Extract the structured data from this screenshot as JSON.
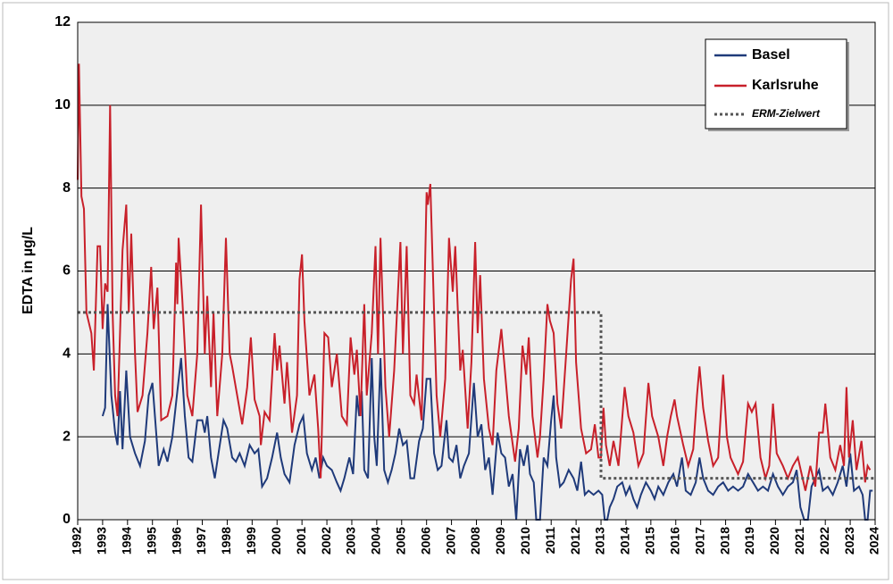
{
  "chart_data": {
    "type": "line",
    "y_label": "EDTA in µg/L",
    "xlim": [
      1992,
      2024
    ],
    "xticks": [
      1992,
      1993,
      1994,
      1995,
      1996,
      1997,
      1998,
      1999,
      2000,
      2001,
      2002,
      2003,
      2004,
      2005,
      2006,
      2007,
      2008,
      2009,
      2010,
      2011,
      2012,
      2013,
      2014,
      2015,
      2016,
      2017,
      2018,
      2019,
      2020,
      2021,
      2022,
      2023,
      2024
    ],
    "ylim": [
      0,
      12
    ],
    "yticks": [
      0,
      2,
      4,
      6,
      8,
      10,
      12
    ],
    "grid": true,
    "legend": "upper right",
    "series": [
      {
        "name": "Basel",
        "color": "#1f3a7a",
        "style": "solid",
        "x": [
          1993.0,
          1993.1,
          1993.2,
          1993.35,
          1993.5,
          1993.6,
          1993.7,
          1993.8,
          1993.95,
          1994.1,
          1994.3,
          1994.5,
          1994.7,
          1994.85,
          1995.0,
          1995.1,
          1995.25,
          1995.45,
          1995.6,
          1995.8,
          1996.0,
          1996.15,
          1996.3,
          1996.45,
          1996.6,
          1996.8,
          1997.0,
          1997.1,
          1997.2,
          1997.35,
          1997.5,
          1997.65,
          1997.85,
          1998.0,
          1998.2,
          1998.35,
          1998.5,
          1998.7,
          1998.9,
          1999.1,
          1999.25,
          1999.4,
          1999.6,
          1999.8,
          2000.0,
          2000.15,
          2000.3,
          2000.5,
          2000.7,
          2000.9,
          2001.05,
          2001.2,
          2001.4,
          2001.55,
          2001.7,
          2001.85,
          2002.0,
          2002.2,
          2002.4,
          2002.55,
          2002.7,
          2002.9,
          2003.05,
          2003.2,
          2003.3,
          2003.4,
          2003.5,
          2003.65,
          2003.8,
          2003.9,
          2004.0,
          2004.15,
          2004.3,
          2004.45,
          2004.6,
          2004.75,
          2004.9,
          2005.05,
          2005.2,
          2005.35,
          2005.5,
          2005.7,
          2005.85,
          2006.0,
          2006.15,
          2006.3,
          2006.45,
          2006.6,
          2006.8,
          2006.9,
          2007.05,
          2007.2,
          2007.35,
          2007.5,
          2007.7,
          2007.9,
          2008.05,
          2008.2,
          2008.35,
          2008.5,
          2008.65,
          2008.85,
          2009.0,
          2009.15,
          2009.3,
          2009.45,
          2009.6,
          2009.75,
          2009.9,
          2010.05,
          2010.15,
          2010.3,
          2010.4,
          2010.55,
          2010.7,
          2010.85,
          2011.0,
          2011.1,
          2011.2,
          2011.35,
          2011.5,
          2011.7,
          2011.9,
          2012.05,
          2012.2,
          2012.35,
          2012.5,
          2012.7,
          2012.9,
          2013.05,
          2013.15,
          2013.25,
          2013.35,
          2013.5,
          2013.65,
          2013.85,
          2014.0,
          2014.15,
          2014.3,
          2014.45,
          2014.6,
          2014.8,
          2015.0,
          2015.15,
          2015.3,
          2015.5,
          2015.7,
          2015.9,
          2016.05,
          2016.25,
          2016.4,
          2016.6,
          2016.8,
          2016.95,
          2017.1,
          2017.3,
          2017.5,
          2017.7,
          2017.9,
          2018.1,
          2018.3,
          2018.5,
          2018.7,
          2018.9,
          2019.1,
          2019.3,
          2019.5,
          2019.7,
          2019.9,
          2020.1,
          2020.3,
          2020.5,
          2020.7,
          2020.85,
          2021.0,
          2021.15,
          2021.3,
          2021.45,
          2021.6,
          2021.75,
          2021.9,
          2022.1,
          2022.3,
          2022.5,
          2022.7,
          2022.85,
          2023.0,
          2023.15,
          2023.35,
          2023.5,
          2023.6,
          2023.7,
          2023.8,
          2023.9
        ],
        "values": [
          2.5,
          2.7,
          5.2,
          3,
          2.1,
          1.8,
          3.1,
          1.7,
          3.6,
          2,
          1.6,
          1.3,
          1.9,
          3,
          3.3,
          2.5,
          1.3,
          1.7,
          1.4,
          2,
          3.1,
          3.9,
          2.5,
          1.5,
          1.4,
          2.4,
          2.4,
          2.1,
          2.5,
          1.5,
          1,
          1.6,
          2.4,
          2.2,
          1.5,
          1.4,
          1.6,
          1.3,
          1.8,
          1.6,
          1.7,
          0.8,
          1,
          1.5,
          2.1,
          1.5,
          1.1,
          0.9,
          1.8,
          2.3,
          2.5,
          1.6,
          1.2,
          1.5,
          1,
          1.5,
          1.3,
          1.2,
          0.9,
          0.7,
          1,
          1.5,
          1.1,
          3,
          2.5,
          3.1,
          1.2,
          1,
          3.9,
          2,
          1.3,
          3.9,
          1.2,
          0.9,
          1.2,
          1.6,
          2.2,
          1.8,
          1.9,
          1,
          1,
          1.9,
          2.2,
          3.4,
          3.4,
          1.6,
          1.2,
          1.3,
          2.4,
          1.5,
          1.4,
          1.8,
          1,
          1.3,
          1.6,
          3.3,
          2,
          2.3,
          1.2,
          1.5,
          0.6,
          2.1,
          1.6,
          1.5,
          0.8,
          1.1,
          0,
          1.7,
          1.3,
          1.8,
          1.1,
          0.9,
          0,
          0,
          1.5,
          1.3,
          2.4,
          3,
          1.5,
          0.8,
          0.9,
          1.2,
          1,
          0.7,
          1.4,
          0.6,
          0.7,
          0.6,
          0.7,
          0.6,
          0,
          0,
          0.3,
          0.5,
          0.8,
          0.9,
          0.6,
          0.8,
          0.5,
          0.3,
          0.6,
          0.9,
          0.7,
          0.5,
          0.8,
          0.6,
          0.9,
          1.1,
          0.8,
          1.5,
          0.7,
          0.6,
          0.9,
          1.5,
          1,
          0.7,
          0.6,
          0.8,
          0.9,
          0.7,
          0.8,
          0.7,
          0.8,
          1.1,
          0.9,
          0.7,
          0.8,
          0.7,
          1.1,
          0.8,
          0.6,
          0.8,
          0.9,
          1.2,
          0.3,
          0,
          0,
          0.8,
          1,
          1.2,
          0.7,
          0.8,
          0.6,
          0.9,
          1.3,
          0.8,
          1.6,
          0.7,
          0.8,
          0.6,
          0,
          0,
          0.7,
          0.7
        ]
      },
      {
        "name": "Karlsruhe",
        "color": "#c8202a",
        "style": "solid",
        "x": [
          1992.0,
          1992.05,
          1992.15,
          1992.25,
          1992.35,
          1992.55,
          1992.65,
          1992.8,
          1992.9,
          1993.0,
          1993.1,
          1993.2,
          1993.3,
          1993.4,
          1993.5,
          1993.6,
          1993.8,
          1993.95,
          1994.05,
          1994.15,
          1994.3,
          1994.4,
          1994.6,
          1994.8,
          1994.95,
          1995.05,
          1995.2,
          1995.35,
          1995.6,
          1995.8,
          1995.95,
          1996.0,
          1996.05,
          1996.2,
          1996.4,
          1996.6,
          1996.8,
          1996.95,
          1997.1,
          1997.2,
          1997.35,
          1997.45,
          1997.6,
          1997.8,
          1997.95,
          1998.1,
          1998.2,
          1998.4,
          1998.6,
          1998.8,
          1998.95,
          1999.1,
          1999.3,
          1999.35,
          1999.5,
          1999.7,
          1999.9,
          2000.0,
          2000.1,
          2000.3,
          2000.4,
          2000.6,
          2000.8,
          2000.9,
          2001.0,
          2001.1,
          2001.3,
          2001.5,
          2001.65,
          2001.75,
          2001.9,
          2002.05,
          2002.2,
          2002.4,
          2002.6,
          2002.8,
          2002.95,
          2003.1,
          2003.2,
          2003.35,
          2003.5,
          2003.6,
          2003.8,
          2003.95,
          2004.05,
          2004.15,
          2004.35,
          2004.5,
          2004.7,
          2004.95,
          2005.05,
          2005.2,
          2005.35,
          2005.5,
          2005.6,
          2005.8,
          2005.9,
          2006.0,
          2006.05,
          2006.15,
          2006.3,
          2006.4,
          2006.55,
          2006.75,
          2006.9,
          2007.05,
          2007.15,
          2007.35,
          2007.45,
          2007.65,
          2007.8,
          2007.95,
          2008.05,
          2008.15,
          2008.3,
          2008.5,
          2008.65,
          2008.8,
          2009.0,
          2009.1,
          2009.3,
          2009.55,
          2009.7,
          2009.85,
          2010.0,
          2010.1,
          2010.25,
          2010.45,
          2010.55,
          2010.7,
          2010.85,
          2010.95,
          2011.1,
          2011.25,
          2011.4,
          2011.6,
          2011.8,
          2011.9,
          2012.0,
          2012.2,
          2012.4,
          2012.6,
          2012.75,
          2012.9,
          2013.0,
          2013.1,
          2013.2,
          2013.35,
          2013.5,
          2013.7,
          2013.95,
          2014.1,
          2014.3,
          2014.5,
          2014.7,
          2014.9,
          2015.05,
          2015.3,
          2015.5,
          2015.65,
          2015.8,
          2015.95,
          2016.05,
          2016.3,
          2016.5,
          2016.7,
          2016.85,
          2016.95,
          2017.1,
          2017.3,
          2017.5,
          2017.7,
          2017.9,
          2018.05,
          2018.2,
          2018.5,
          2018.7,
          2018.9,
          2019.05,
          2019.2,
          2019.4,
          2019.6,
          2019.75,
          2019.9,
          2020.05,
          2020.3,
          2020.5,
          2020.7,
          2020.9,
          2021.05,
          2021.2,
          2021.4,
          2021.6,
          2021.75,
          2021.9,
          2022.0,
          2022.2,
          2022.4,
          2022.6,
          2022.75,
          2022.85,
          2022.95,
          2023.1,
          2023.25,
          2023.45,
          2023.6,
          2023.7,
          2023.8
        ],
        "values": [
          8.2,
          11,
          7.8,
          7.5,
          5,
          4.5,
          3.6,
          6.6,
          6.6,
          4.6,
          5.7,
          5.5,
          10,
          5,
          3,
          2.5,
          6.5,
          7.6,
          5,
          6.9,
          4,
          2.6,
          3,
          4.5,
          6.1,
          4.6,
          5.6,
          2.4,
          2.5,
          3,
          6.2,
          5.2,
          6.8,
          5.3,
          3,
          2.5,
          4,
          7.6,
          4,
          5.4,
          3.2,
          5,
          2.5,
          4,
          6.8,
          4,
          3.7,
          3,
          2.3,
          3.2,
          4.4,
          2.9,
          2.5,
          1.8,
          2.6,
          2.4,
          4.5,
          3.6,
          4.2,
          2.8,
          3.8,
          2.1,
          3,
          5.8,
          6.4,
          4.8,
          3,
          3.5,
          2.2,
          1,
          4.5,
          4.4,
          3.2,
          4,
          2.5,
          2.3,
          4.4,
          3.5,
          4.1,
          2.5,
          5.2,
          3,
          4.5,
          6.6,
          4,
          6.8,
          3.2,
          2,
          3.6,
          6.7,
          4,
          6.6,
          3,
          2.8,
          3.5,
          2.4,
          5,
          7.9,
          7.6,
          8.1,
          5,
          3,
          2,
          3.4,
          6.8,
          5.5,
          6.6,
          3.6,
          4.1,
          2.2,
          3.8,
          6.7,
          4.5,
          5.9,
          3.4,
          2.2,
          1.8,
          3.6,
          4.6,
          3.9,
          2.5,
          1.4,
          2.2,
          4.2,
          3.5,
          4.4,
          2.5,
          1.5,
          2,
          3.4,
          5.2,
          4.8,
          4.5,
          2.8,
          2.2,
          4,
          5.8,
          6.3,
          3.8,
          2.2,
          1.6,
          1.7,
          2.3,
          1.5,
          1.5,
          2.7,
          1.8,
          1.3,
          1.9,
          1.3,
          3.2,
          2.5,
          2.1,
          1.3,
          1.6,
          3.3,
          2.5,
          2,
          1.3,
          2,
          2.5,
          2.9,
          2.5,
          1.8,
          1.3,
          1.7,
          3,
          3.7,
          2.7,
          1.9,
          1.3,
          1.5,
          3.5,
          2,
          1.5,
          1.1,
          1.4,
          2.8,
          2.6,
          2.8,
          1.5,
          1,
          1.3,
          2.8,
          1.6,
          1.3,
          1,
          1.3,
          1.5,
          1.1,
          0.7,
          1.3,
          0.8,
          2.1,
          2.1,
          2.8,
          1.5,
          1.2,
          1.8,
          1.3,
          3.2,
          1.5,
          2.4,
          1.2,
          1.9,
          0.9,
          1.3,
          1.2
        ]
      },
      {
        "name": "ERM-Zielwert",
        "color": "#555555",
        "style": "dotted",
        "x": [
          1992,
          2013,
          2013,
          2024
        ],
        "values": [
          5,
          5,
          1,
          1
        ]
      }
    ]
  }
}
